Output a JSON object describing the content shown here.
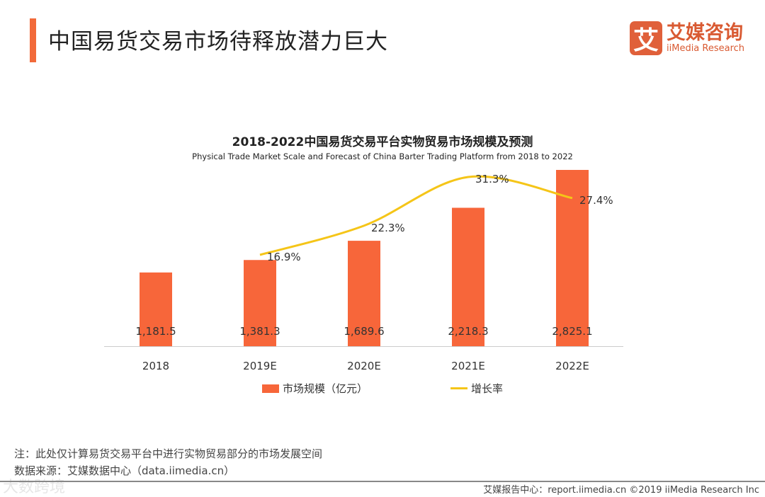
{
  "header": {
    "title": "中国易货交易市场待释放潜力巨大",
    "logo_cn": "艾媒咨询",
    "logo_en": "iiMedia Research",
    "logo_mark": "艾"
  },
  "chart_data": {
    "type": "bar",
    "title": "2018-2022中国易货交易平台实物贸易市场规模及预测",
    "subtitle": "Physical Trade Market Scale and Forecast of China Barter Trading Platform from 2018 to 2022",
    "categories": [
      "2018",
      "2019E",
      "2020E",
      "2021E",
      "2022E"
    ],
    "series": [
      {
        "name": "市场规模（亿元）",
        "type": "bar",
        "color": "#f7663a",
        "values": [
          1181.5,
          1381.3,
          1689.6,
          2218.3,
          2825.1
        ],
        "labels": [
          "1,181.5",
          "1,381.3",
          "1,689.6",
          "2,218.3",
          "2,825.1"
        ]
      },
      {
        "name": "增长率",
        "type": "line",
        "color": "#f5c518",
        "values": [
          null,
          16.9,
          22.3,
          31.3,
          27.4
        ],
        "labels": [
          "",
          "16.9%",
          "22.3%",
          "31.3%",
          "27.4%"
        ]
      }
    ],
    "ylim": [
      0,
      2825.1
    ],
    "y2lim": [
      16.9,
      31.3
    ],
    "legend": "bottom",
    "grid": false
  },
  "notes": {
    "note": "注：此处仅计算易货交易平台中进行实物贸易部分的市场发展空间",
    "source": "数据来源：艾媒数据中心（data.iimedia.cn）"
  },
  "footer": {
    "text": "艾媒报告中心：report.iimedia.cn ©2019 iiMedia Research Inc",
    "watermark": "大数跨境"
  }
}
